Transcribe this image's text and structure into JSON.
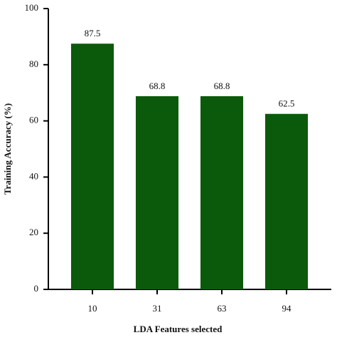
{
  "chart_data": {
    "type": "bar",
    "categories": [
      "10",
      "31",
      "63",
      "94"
    ],
    "values": [
      87.5,
      68.8,
      68.8,
      62.5
    ],
    "color": "#0b5a0b",
    "xlabel": "LDA Features selected",
    "ylabel": "Training Accuracy (%)",
    "ylim": [
      0,
      100
    ],
    "yticks": [
      0,
      20,
      40,
      60,
      80,
      100
    ],
    "grid": false
  }
}
